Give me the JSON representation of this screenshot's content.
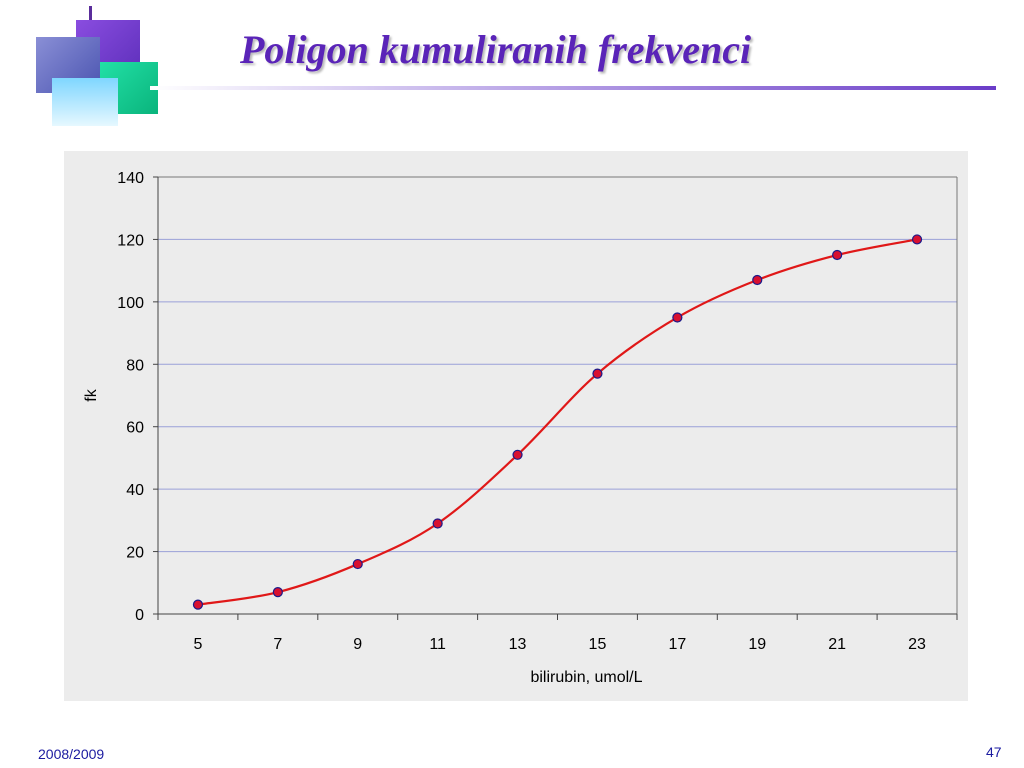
{
  "slide": {
    "title": "Poligon kumuliranih frekvenci",
    "footer_left": "2008/2009",
    "page_number": "47"
  },
  "colors": {
    "title": "#5a24b8",
    "line": "#e01818",
    "marker_fill": "#d81030",
    "marker_stroke": "#1a1a8a",
    "gridline": "#9aa0d8",
    "plot_bg": "#ececec"
  },
  "chart_data": {
    "type": "line",
    "title": "",
    "xlabel": "bilirubin, umol/L",
    "ylabel": "fk",
    "categories": [
      "5",
      "7",
      "9",
      "11",
      "13",
      "15",
      "17",
      "19",
      "21",
      "23"
    ],
    "series": [
      {
        "values": [
          3,
          7,
          16,
          29,
          51,
          77,
          95,
          107,
          115,
          120
        ]
      }
    ],
    "ylim": [
      0,
      140
    ],
    "yticks": [
      "0",
      "20",
      "40",
      "60",
      "80",
      "100",
      "120",
      "140"
    ],
    "grid": true,
    "smooth": true,
    "legend": "none"
  }
}
